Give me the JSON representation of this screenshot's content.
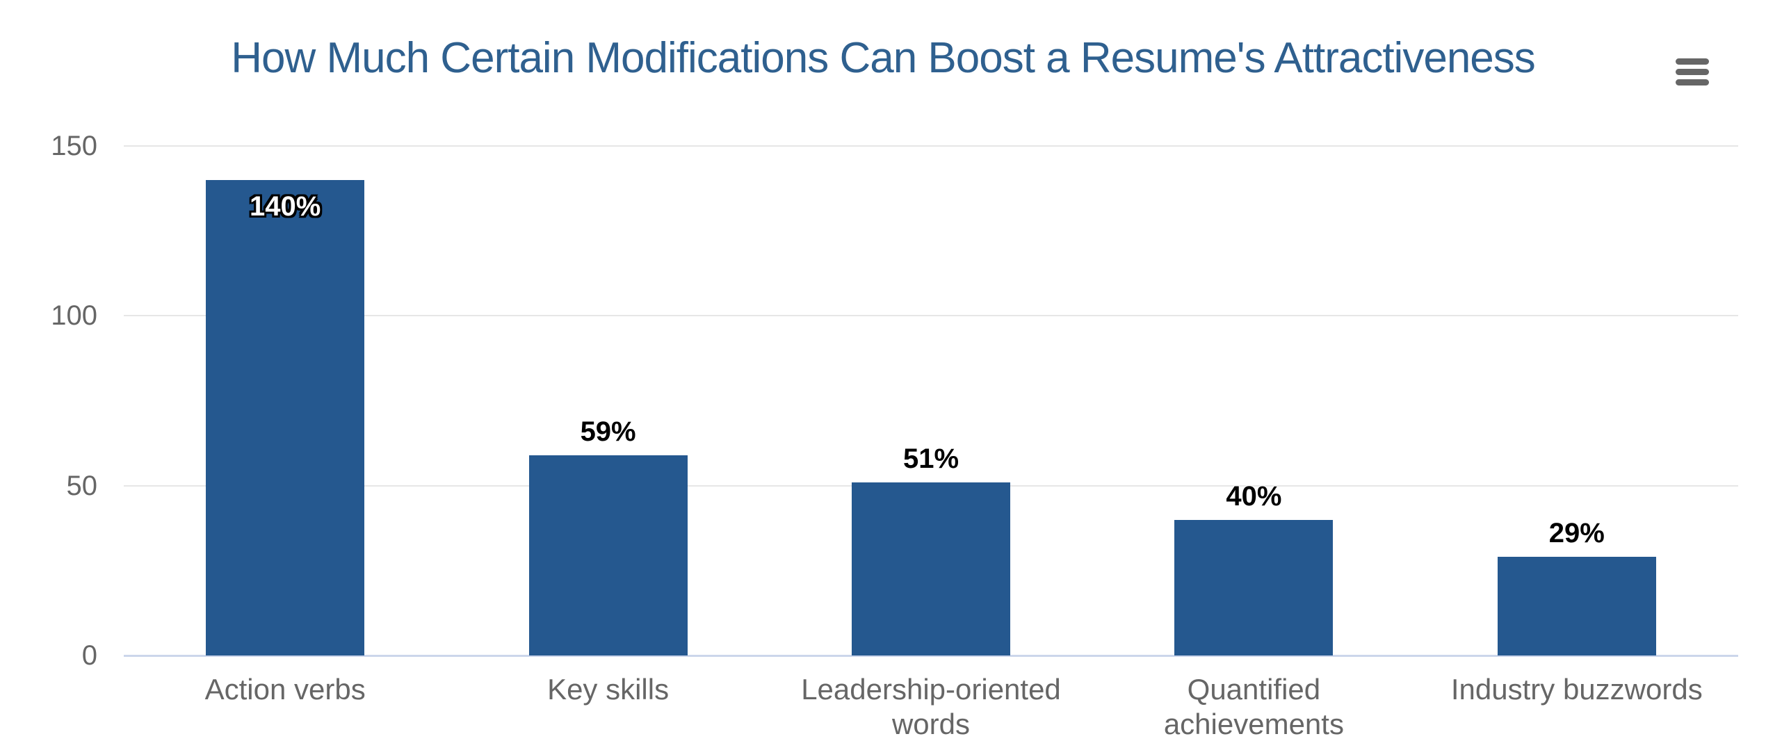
{
  "header": {
    "title": "How Much Certain Modifications Can Boost a Resume's Attractiveness"
  },
  "chart_data": {
    "type": "bar",
    "title": "How Much Certain Modifications Can Boost a Resume's Attractiveness",
    "categories": [
      "Action verbs",
      "Key skills",
      "Leadership-oriented words",
      "Quantified achievements",
      "Industry buzzwords"
    ],
    "category_label_lines": [
      [
        "Action verbs"
      ],
      [
        "Key skills"
      ],
      [
        "Leadership-oriented",
        "words"
      ],
      [
        "Quantified",
        "achievements"
      ],
      [
        "Industry buzzwords"
      ]
    ],
    "values": [
      140,
      59,
      51,
      40,
      29
    ],
    "data_labels": [
      "140%",
      "59%",
      "51%",
      "40%",
      "29%"
    ],
    "data_label_placement": [
      "inside",
      "above",
      "above",
      "above",
      "above"
    ],
    "xlabel": "",
    "ylabel": "",
    "y_axis": {
      "ticks": [
        0,
        50,
        100,
        150
      ],
      "range": [
        0,
        150
      ]
    },
    "grid": true,
    "legend": false,
    "bar_width_ratio": 0.49,
    "colors": {
      "bar": "#25588F",
      "title": "#2F608F",
      "axis_labels": "#666666",
      "gridline": "#e6e6e6",
      "axis_line": "#ccd6eb",
      "data_label_above": "#000000",
      "data_label_inside": "#ffffff",
      "menu_icon": "#666666",
      "background": "#ffffff"
    }
  }
}
